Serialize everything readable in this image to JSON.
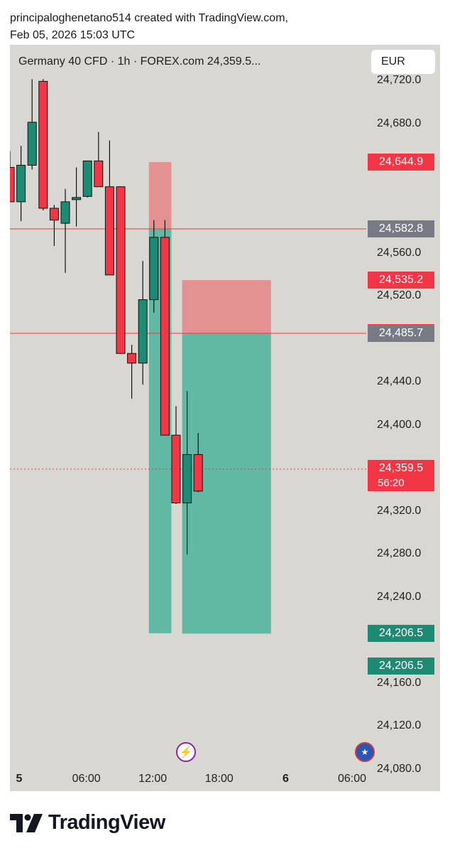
{
  "credit": {
    "line1": "principaloghenetano514 created with TradingView.com,",
    "line2": "Feb 05, 2026 15:03 UTC"
  },
  "header": {
    "title": "Germany 40 CFD · 1h · FOREX.com  24,359.5...",
    "currency": "EUR"
  },
  "colors": {
    "up": "#1e8a74",
    "down": "#f23645",
    "panel_bg": "#d9d7d2",
    "grey_badge": "#787b86",
    "tp_zone": "#4bb39b",
    "sl_zone": "#e58686",
    "level_line": "#f23645"
  },
  "chart_data": {
    "type": "candlestick",
    "symbol": "Germany 40 CFD",
    "interval": "1h",
    "broker": "FOREX.com",
    "last_price": 24359.5,
    "ylim": [
      24060,
      24754
    ],
    "y_ticks": [
      "24,720.0",
      "24,680.0",
      "24,560.0",
      "24,520.0",
      "24,440.0",
      "24,400.0",
      "24,320.0",
      "24,280.0",
      "24,240.0",
      "24,160.0",
      "24,120.0",
      "24,080.0"
    ],
    "y_tick_values": [
      24720,
      24680,
      24560,
      24520,
      24440,
      24400,
      24320,
      24280,
      24240,
      24160,
      24120,
      24080
    ],
    "x_ticks": [
      {
        "label": "5",
        "bold": true,
        "index": 0
      },
      {
        "label": "06:00",
        "bold": false,
        "index": 6
      },
      {
        "label": "12:00",
        "bold": false,
        "index": 12
      },
      {
        "label": "18:00",
        "bold": false,
        "index": 18
      },
      {
        "label": "6",
        "bold": true,
        "index": 24
      },
      {
        "label": "06:00",
        "bold": false,
        "index": 30
      }
    ],
    "candles": [
      {
        "i": 0,
        "o": 24640,
        "h": 24655,
        "l": 24610,
        "c": 24608
      },
      {
        "i": 1,
        "o": 24608,
        "h": 24660,
        "l": 24590,
        "c": 24642
      },
      {
        "i": 2,
        "o": 24642,
        "h": 24722,
        "l": 24638,
        "c": 24682
      },
      {
        "i": 3,
        "o": 24720,
        "h": 24722,
        "l": 24600,
        "c": 24602
      },
      {
        "i": 4,
        "o": 24602,
        "h": 24605,
        "l": 24567,
        "c": 24591
      },
      {
        "i": 5,
        "o": 24588,
        "h": 24620,
        "l": 24542,
        "c": 24608
      },
      {
        "i": 6,
        "o": 24610,
        "h": 24640,
        "l": 24585,
        "c": 24612
      },
      {
        "i": 7,
        "o": 24613,
        "h": 24643,
        "l": 24612,
        "c": 24646
      },
      {
        "i": 8,
        "o": 24646,
        "h": 24673,
        "l": 24622,
        "c": 24622
      },
      {
        "i": 9,
        "o": 24622,
        "h": 24665,
        "l": 24540,
        "c": 24540
      },
      {
        "i": 10,
        "o": 24622,
        "h": 24622,
        "l": 24467,
        "c": 24467
      },
      {
        "i": 11,
        "o": 24467,
        "h": 24475,
        "l": 24425,
        "c": 24458
      },
      {
        "i": 12,
        "o": 24458,
        "h": 24553,
        "l": 24438,
        "c": 24517
      },
      {
        "i": 13,
        "o": 24517,
        "h": 24591,
        "l": 24505,
        "c": 24575
      },
      {
        "i": 14,
        "o": 24575,
        "h": 24591,
        "l": 24395,
        "c": 24391
      },
      {
        "i": 15,
        "o": 24391,
        "h": 24418,
        "l": 24327,
        "c": 24328
      },
      {
        "i": 16,
        "o": 24328,
        "h": 24432,
        "l": 24280,
        "c": 24373
      },
      {
        "i": 17,
        "o": 24373,
        "h": 24393,
        "l": 24338,
        "c": 24339
      }
    ],
    "horizontal_lines": [
      {
        "price": 24582.8,
        "style": "solid"
      },
      {
        "price": 24485.7,
        "style": "solid"
      },
      {
        "price": 24359.5,
        "style": "dotted"
      }
    ],
    "positions": [
      {
        "type": "short",
        "i_start": 13,
        "i_end": 14,
        "entry": 24582.8,
        "stop": 24644.9,
        "target": 24206.8
      },
      {
        "type": "short",
        "i_start": 16,
        "i_end": 23,
        "entry": 24485.7,
        "stop": 24535.2,
        "target": 24206.5
      }
    ],
    "price_badges": [
      {
        "label": "24,644.9",
        "price": 24644.9,
        "color": "red"
      },
      {
        "label": "24,583.0",
        "price": 24583.0,
        "color": "red"
      },
      {
        "label": "24,582.8",
        "price": 24582.8,
        "color": "grey"
      },
      {
        "label": "24,535.2",
        "price": 24535.2,
        "color": "red"
      },
      {
        "label": "24,486.0",
        "price": 24486.0,
        "color": "red"
      },
      {
        "label": "24,485.7",
        "price": 24485.7,
        "color": "grey"
      },
      {
        "label": "24,206.8",
        "price": 24206.8,
        "color": "green"
      },
      {
        "label": "24,206.5",
        "price": 24206.5,
        "color": "green"
      },
      {
        "label": "24,206.5",
        "price": 24176.5,
        "color": "green"
      }
    ],
    "last_price_badge": {
      "label": "24,359.5",
      "timer": "56:20",
      "price": 24359.5
    }
  },
  "footer": {
    "logo_text": "TradingView"
  }
}
